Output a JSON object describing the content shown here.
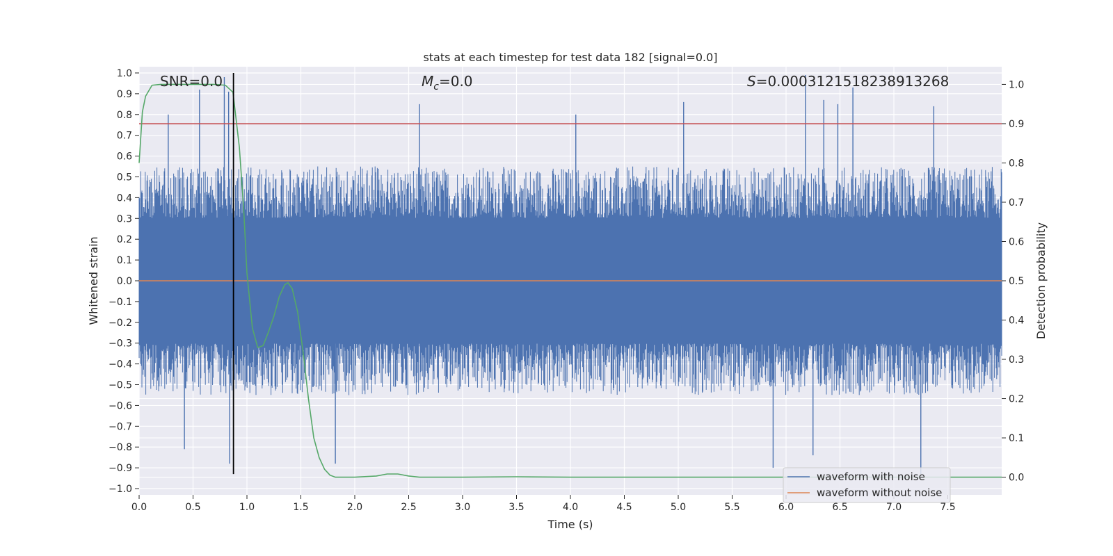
{
  "chart_data": {
    "type": "line",
    "title": "stats at each timestep for test data 182 [signal=0.0]",
    "xlabel": "Time (s)",
    "ylabel_left": "Whitened strain",
    "ylabel_right": "Detection probability",
    "xlim": [
      0.0,
      8.0
    ],
    "ylim_left": [
      -1.03,
      1.03
    ],
    "ylim_right": [
      -0.045,
      1.045
    ],
    "x_ticks": [
      "0.0",
      "0.5",
      "1.0",
      "1.5",
      "2.0",
      "2.5",
      "3.0",
      "3.5",
      "4.0",
      "4.5",
      "5.0",
      "5.5",
      "6.0",
      "6.5",
      "7.0",
      "7.5"
    ],
    "y_ticks_left": [
      "1.0",
      "0.9",
      "0.8",
      "0.7",
      "0.6",
      "0.5",
      "0.4",
      "0.3",
      "0.2",
      "0.1",
      "0.0",
      "−0.1",
      "−0.2",
      "−0.3",
      "−0.4",
      "−0.5",
      "−0.6",
      "−0.7",
      "−0.8",
      "−0.9",
      "−1.0"
    ],
    "y_ticks_right": [
      "1.0",
      "0.9",
      "0.8",
      "0.7",
      "0.6",
      "0.5",
      "0.4",
      "0.3",
      "0.2",
      "0.1",
      "0.0"
    ],
    "annotations": {
      "snr": "SNR=0.0",
      "mc_symbol": "M",
      "mc_subscript": "c",
      "mc_value": "=0.0",
      "s_symbol": "S",
      "s_value": "=0.0003121518238913268"
    },
    "threshold_line": {
      "axis": "right",
      "value": 0.9,
      "color": "#c44e52"
    },
    "marker_line": {
      "x": 0.875,
      "y_from": -0.93,
      "y_to": 1.0,
      "color": "#000000"
    },
    "series": [
      {
        "name": "waveform with noise",
        "axis": "left",
        "color": "#4c72b0",
        "description_values": {
          "typical_min": -0.55,
          "typical_max": 0.55,
          "peak_max": 1.0,
          "peak_min": -0.93
        },
        "peaks": [
          {
            "x": 0.56,
            "y": 0.92
          },
          {
            "x": 0.79,
            "y": 0.98
          },
          {
            "x": 0.83,
            "y": 0.91
          },
          {
            "x": 0.27,
            "y": 0.8
          },
          {
            "x": 2.6,
            "y": 0.85
          },
          {
            "x": 4.05,
            "y": 0.8
          },
          {
            "x": 5.05,
            "y": 0.86
          },
          {
            "x": 6.18,
            "y": 0.99
          },
          {
            "x": 6.35,
            "y": 0.87
          },
          {
            "x": 6.48,
            "y": 0.85
          },
          {
            "x": 6.62,
            "y": 0.93
          },
          {
            "x": 7.37,
            "y": 0.84
          },
          {
            "x": 0.84,
            "y": -0.88
          },
          {
            "x": 1.82,
            "y": -0.88
          },
          {
            "x": 5.88,
            "y": -0.9
          },
          {
            "x": 7.25,
            "y": -0.93
          },
          {
            "x": 6.25,
            "y": -0.84
          },
          {
            "x": 0.42,
            "y": -0.81
          }
        ]
      },
      {
        "name": "waveform without noise",
        "axis": "left",
        "color": "#dd8452",
        "x": [
          0.0,
          8.0
        ],
        "values": [
          0.0,
          0.0
        ]
      },
      {
        "name": "detection probability",
        "axis": "right",
        "color": "#55a868",
        "x": [
          0.0,
          0.03,
          0.06,
          0.12,
          0.2,
          0.3,
          0.5,
          0.7,
          0.8,
          0.87,
          0.93,
          0.97,
          1.0,
          1.05,
          1.1,
          1.15,
          1.2,
          1.25,
          1.3,
          1.35,
          1.38,
          1.42,
          1.47,
          1.52,
          1.57,
          1.62,
          1.67,
          1.72,
          1.77,
          1.82,
          2.0,
          2.2,
          2.3,
          2.4,
          2.5,
          2.6,
          3.0,
          3.5,
          4.0,
          5.0,
          6.0,
          7.0,
          8.0
        ],
        "values": [
          0.8,
          0.93,
          0.97,
          0.998,
          1.0,
          1.0,
          1.0,
          1.0,
          0.998,
          0.98,
          0.84,
          0.68,
          0.52,
          0.38,
          0.33,
          0.335,
          0.37,
          0.41,
          0.46,
          0.49,
          0.495,
          0.48,
          0.42,
          0.32,
          0.2,
          0.1,
          0.05,
          0.02,
          0.005,
          0.0,
          0.0,
          0.003,
          0.008,
          0.008,
          0.003,
          0.0,
          0.0,
          0.001,
          0.0,
          0.0,
          0.0,
          0.0,
          0.0
        ]
      }
    ],
    "legend": {
      "position": "bottom-right",
      "entries": [
        {
          "label": "waveform with noise",
          "color": "#4c72b0"
        },
        {
          "label": "waveform without noise",
          "color": "#dd8452"
        }
      ]
    },
    "style": {
      "background": "#eaeaf2",
      "grid": true,
      "grid_color": "#ffffff"
    }
  }
}
